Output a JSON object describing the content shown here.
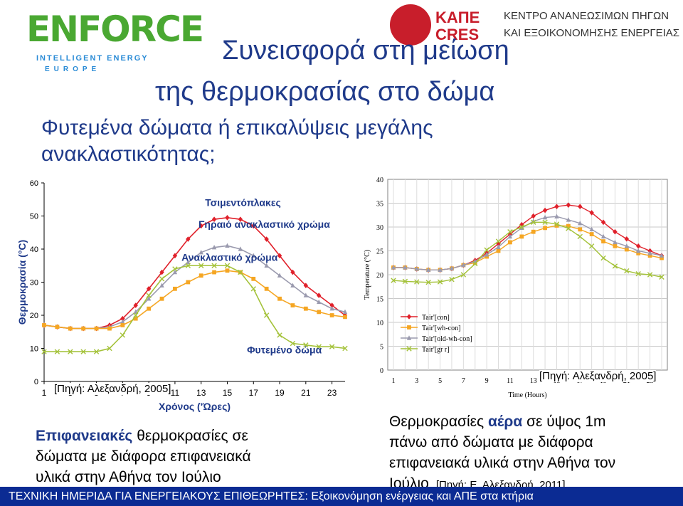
{
  "logos": {
    "enforce": {
      "brand": "ENFORCE",
      "line1": "INTELLIGENT ENERGY",
      "line2": "EUROPE"
    },
    "cres": {
      "abbr_gr": "ΚΑΠΕ",
      "abbr_en": "CRES",
      "line1": "ΚΕΝΤΡΟ ΑΝΑΝΕΩΣΙΜΩΝ ΠΗΓΩΝ",
      "line2": "ΚΑΙ ΕΞΟΙΚΟΝΟΜΗΣΗΣ ΕΝΕΡΓΕΙΑΣ"
    }
  },
  "title": {
    "line1": "Συνεισφορά στη μείωση",
    "line2": "της θερμοκρασίας στο δώμα"
  },
  "subtitle": {
    "line1": "Φυτεμένα δώματα ή επικαλύψεις μεγάλης",
    "line2": "ανακλαστικότητας;"
  },
  "sources": {
    "left": "[Πηγή: Αλεξανδρή, 2005]",
    "right": "[Πηγή: Αλεξανδρή, 2005]"
  },
  "captions": {
    "left_bold": "Επιφανειακές",
    "left_rest1": " θερμοκρασίες σε",
    "left_line2": "δώματα με διάφορα επιφανειακά",
    "left_line3": "υλικά στην Αθήνα τον Ιούλιο",
    "right_pre": "Θερμοκρασίες ",
    "right_bold": "αέρα",
    "right_post": " σε ύψος 1m",
    "right_line2": "πάνω από δώματα με διάφορα",
    "right_line3": "επιφανειακά υλικά στην Αθήνα τον",
    "right_line4": "Ιούλιο",
    "right_src": "[Πηγή: Ε. Αλεξανδρή, 2011]"
  },
  "footer": "ΤΕΧΝΙΚΗ ΗΜΕΡΙΔΑ ΓΙΑ ΕΝΕΡΓΕΙΑΚΟΥΣ ΕΠΙΘΕΩΡΗΤΕΣ: Εξοικονόμηση ενέργειας και ΑΠΕ στα κτήρια",
  "chart_data": [
    {
      "type": "line",
      "xlabel": "Χρόνος ('Ώρες)",
      "ylabel": "Θερμοκρασία (°C)",
      "ylim": [
        0,
        60
      ],
      "yticks": [
        0,
        10,
        20,
        30,
        40,
        50,
        60
      ],
      "xlim": [
        1,
        24
      ],
      "xticks": [
        1,
        3,
        5,
        7,
        9,
        11,
        13,
        15,
        17,
        19,
        21,
        23
      ],
      "grid": false,
      "x": [
        1,
        2,
        3,
        4,
        5,
        6,
        7,
        8,
        9,
        10,
        11,
        12,
        13,
        14,
        15,
        16,
        17,
        18,
        19,
        20,
        21,
        22,
        23,
        24
      ],
      "series": [
        {
          "name": "Τσιμεντόπλακες",
          "color": "#e0202a",
          "marker": "diamond",
          "values": [
            17,
            16.5,
            16,
            16,
            16,
            17,
            19,
            23,
            28,
            33,
            38,
            43,
            47,
            49,
            49.5,
            49,
            47,
            43,
            38,
            33,
            29,
            26,
            23,
            20
          ]
        },
        {
          "name": "Γηραιό ανακλαστικό χρώμα",
          "color": "#9a9aae",
          "marker": "triangle",
          "values": [
            17,
            16.5,
            16,
            16,
            16,
            16.5,
            18,
            21,
            25,
            29,
            33,
            36,
            39,
            40.5,
            41,
            40,
            38,
            35,
            32,
            29,
            26,
            24,
            22,
            21
          ]
        },
        {
          "name": "Ανακλαστικό χρώμα",
          "color": "#f5a623",
          "marker": "square",
          "values": [
            17,
            16.5,
            16,
            16,
            16,
            16,
            17,
            19,
            22,
            25,
            28,
            30,
            32,
            33,
            33.5,
            33,
            31,
            28,
            25,
            23,
            22,
            21,
            20,
            19.5
          ]
        },
        {
          "name": "Φυτεμένο δώμα",
          "color": "#a4c23a",
          "marker": "x",
          "values": [
            9,
            9,
            9,
            9,
            9,
            10,
            14,
            20,
            26,
            31,
            34,
            35,
            35,
            35,
            35,
            33,
            28,
            20,
            14,
            11.5,
            11,
            10.5,
            10.5,
            10
          ]
        }
      ]
    },
    {
      "type": "line",
      "xlabel": "Time (Hours)",
      "ylabel": "Temperature (°C)",
      "ylim": [
        0,
        40
      ],
      "yticks": [
        0,
        5,
        10,
        15,
        20,
        25,
        30,
        35,
        40
      ],
      "xlim": [
        1,
        24
      ],
      "xticks": [
        1,
        3,
        5,
        7,
        9,
        11,
        13,
        15,
        17,
        19,
        21,
        23
      ],
      "grid": true,
      "legend": "lower-left",
      "x": [
        1,
        2,
        3,
        4,
        5,
        6,
        7,
        8,
        9,
        10,
        11,
        12,
        13,
        14,
        15,
        16,
        17,
        18,
        19,
        20,
        21,
        22,
        23,
        24
      ],
      "series": [
        {
          "name": "Tair'[con]",
          "color": "#e0202a",
          "marker": "diamond",
          "values": [
            21.5,
            21.5,
            21.2,
            21,
            21,
            21.3,
            22,
            23,
            24.5,
            26.5,
            28.5,
            30.5,
            32.3,
            33.5,
            34.3,
            34.6,
            34.3,
            33,
            31,
            29,
            27.5,
            26,
            25,
            24
          ]
        },
        {
          "name": "Tair'[wh-con]",
          "color": "#f5a623",
          "marker": "square",
          "values": [
            21.5,
            21.5,
            21.2,
            21,
            21,
            21.3,
            22,
            22.5,
            23.8,
            25,
            26.8,
            28,
            29,
            29.8,
            30.3,
            30.2,
            29.5,
            28.5,
            27,
            26,
            25.3,
            24.5,
            24,
            23.5
          ]
        },
        {
          "name": "Tair'[old-wh-con]",
          "color": "#9a9aae",
          "marker": "triangle",
          "values": [
            21.5,
            21.5,
            21.2,
            21,
            21,
            21.3,
            22,
            22.8,
            24.2,
            25.8,
            28,
            29.8,
            31.2,
            32,
            32.2,
            31.5,
            30.8,
            29.5,
            28,
            26.8,
            26,
            25,
            24.5,
            24
          ]
        },
        {
          "name": "Tair'[gr r]",
          "color": "#a4c23a",
          "marker": "x",
          "values": [
            18.8,
            18.6,
            18.5,
            18.4,
            18.5,
            19,
            20,
            22.3,
            25.2,
            27,
            29,
            30,
            31,
            31,
            30.6,
            29.7,
            28,
            26,
            23.5,
            21.8,
            20.8,
            20.2,
            20,
            19.5
          ]
        }
      ]
    }
  ]
}
